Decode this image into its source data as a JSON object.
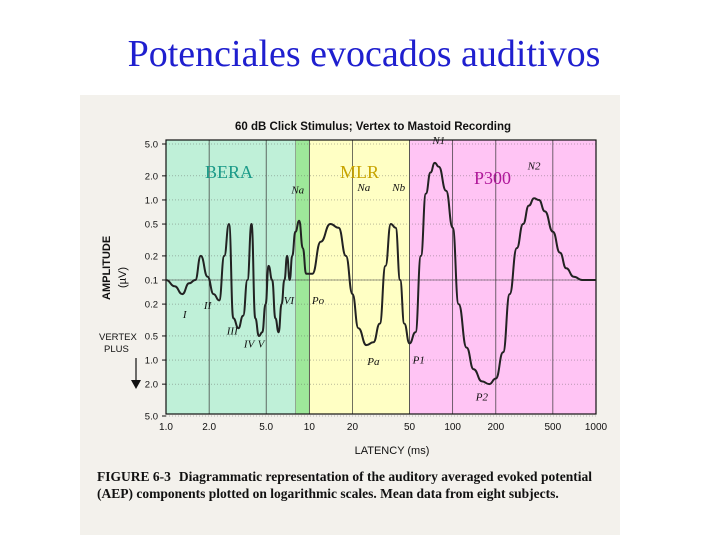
{
  "slide": {
    "title": "Potenciales evocados auditivos"
  },
  "figure": {
    "label": "FIGURE  6-3",
    "caption": "Diagrammatic representation of the auditory averaged evoked potential (AEP) components plotted on logarithmic scales. Mean data from eight subjects."
  },
  "colors": {
    "title": "#1f1fcf",
    "bera_fill": "#bff0d8",
    "mlr_fill": "#ffffc4",
    "p300_fill": "#ffc4f4",
    "bera_label": "#1a9a88",
    "mlr_label": "#c8a400",
    "p300_label": "#b0189a",
    "trace": "#222222"
  },
  "chart_data": {
    "type": "line",
    "title": "60 dB Click Stimulus; Vertex to Mastoid Recording",
    "xlabel": "LATENCY (ms)",
    "ylabel": "AMPLITUDE (µV)",
    "ylabel_main": "AMPLITUDE",
    "ylabel_unit": "(µV)",
    "polarity_label_1": "VERTEX",
    "polarity_label_2": "PLUS",
    "x_scale": "log",
    "xlim": [
      1,
      1000
    ],
    "x_ticks": [
      {
        "v": 1,
        "label": "1.0"
      },
      {
        "v": 2,
        "label": "2.0"
      },
      {
        "v": 5,
        "label": "5.0"
      },
      {
        "v": 10,
        "label": "10"
      },
      {
        "v": 20,
        "label": "20"
      },
      {
        "v": 50,
        "label": "50"
      },
      {
        "v": 100,
        "label": "100"
      },
      {
        "v": 200,
        "label": "200"
      },
      {
        "v": 500,
        "label": "500"
      },
      {
        "v": 1000,
        "label": "1000"
      }
    ],
    "y_scale": "log (vertex negative up, vertex plus down)",
    "y_ticks": [
      {
        "v": 5,
        "label": "5.0"
      },
      {
        "v": 2,
        "label": "2.0"
      },
      {
        "v": 1,
        "label": "1.0"
      },
      {
        "v": 0.5,
        "label": "0.5"
      },
      {
        "v": 0.2,
        "label": "0.2"
      },
      {
        "v": 0.1,
        "label": "0.1"
      },
      {
        "v": -0.2,
        "label": "0.2"
      },
      {
        "v": -0.5,
        "label": "0.5"
      },
      {
        "v": -1,
        "label": "1.0"
      },
      {
        "v": -2,
        "label": "2.0"
      },
      {
        "v": -5,
        "label": "5.0"
      }
    ],
    "regions": [
      {
        "name": "BERA",
        "x_start": 1,
        "x_end": 8
      },
      {
        "name": "MLR",
        "x_start": 10,
        "x_end": 50
      },
      {
        "name": "P300",
        "x_start": 50,
        "x_end": 1000
      }
    ],
    "series": [
      {
        "x": [
          1.0,
          1.15,
          1.3,
          1.45,
          1.6,
          1.75,
          1.95,
          2.15,
          2.35,
          2.55,
          2.75,
          2.95,
          3.2,
          3.45,
          3.7,
          3.95,
          4.2,
          4.45,
          4.7,
          4.95,
          5.2,
          5.5,
          5.8,
          6.1,
          6.4,
          6.7,
          7.0,
          7.3,
          7.6,
          8.0,
          8.5,
          9.0,
          9.5,
          10.5,
          12,
          14,
          16,
          18,
          20,
          22,
          25,
          28,
          31,
          34,
          37,
          40,
          43,
          46,
          50,
          55,
          60,
          65,
          70,
          75,
          80,
          90,
          100,
          110,
          125,
          140,
          160,
          180,
          200,
          225,
          250,
          280,
          310,
          340,
          370,
          400,
          440,
          500,
          560,
          620,
          700,
          800,
          900,
          1000
        ],
        "y": [
          0.1,
          -0.12,
          -0.15,
          -0.11,
          0.1,
          0.2,
          0.11,
          -0.15,
          -0.18,
          0.2,
          0.5,
          -0.3,
          -0.4,
          -0.28,
          0.1,
          0.5,
          -0.3,
          -0.5,
          -0.45,
          -0.2,
          0.15,
          0.1,
          -0.3,
          -0.45,
          -0.2,
          0.1,
          0.2,
          0.1,
          0.2,
          0.4,
          0.55,
          0.25,
          0.12,
          0.12,
          0.3,
          0.5,
          0.45,
          0.2,
          -0.15,
          -0.4,
          -0.65,
          -0.6,
          -0.35,
          0.15,
          0.5,
          0.45,
          0.1,
          -0.35,
          -0.62,
          -0.45,
          0.2,
          1.2,
          2.2,
          2.9,
          2.6,
          1.3,
          0.45,
          -0.2,
          -0.7,
          -1.3,
          -1.85,
          -2.0,
          -1.7,
          -0.8,
          -0.15,
          0.25,
          0.5,
          0.85,
          1.05,
          1.0,
          0.72,
          0.4,
          0.22,
          0.14,
          0.11,
          0.1,
          0.1,
          0.1
        ]
      }
    ],
    "peak_labels": [
      {
        "text": "I",
        "x": 1.35,
        "y": -0.3
      },
      {
        "text": "II",
        "x": 1.95,
        "y": -0.23
      },
      {
        "text": "III",
        "x": 2.9,
        "y": -0.48
      },
      {
        "text": "IV",
        "x": 3.8,
        "y": -0.7
      },
      {
        "text": "V",
        "x": 4.6,
        "y": -0.7
      },
      {
        "text": "VI",
        "x": 7.2,
        "y": -0.2
      },
      {
        "text": "Na",
        "x": 8.3,
        "y": 1.2
      },
      {
        "text": "Po",
        "x": 11.5,
        "y": -0.2
      },
      {
        "text": "Na",
        "x": 24,
        "y": 1.3
      },
      {
        "text": "Nb",
        "x": 42,
        "y": 1.3
      },
      {
        "text": "Pa",
        "x": 28,
        "y": -1.15
      },
      {
        "text": "P1",
        "x": 58,
        "y": -1.1
      },
      {
        "text": "N1",
        "x": 80,
        "y": 5
      },
      {
        "text": "N2",
        "x": 370,
        "y": 2.4
      },
      {
        "text": "P2",
        "x": 160,
        "y": -3.2
      }
    ]
  }
}
